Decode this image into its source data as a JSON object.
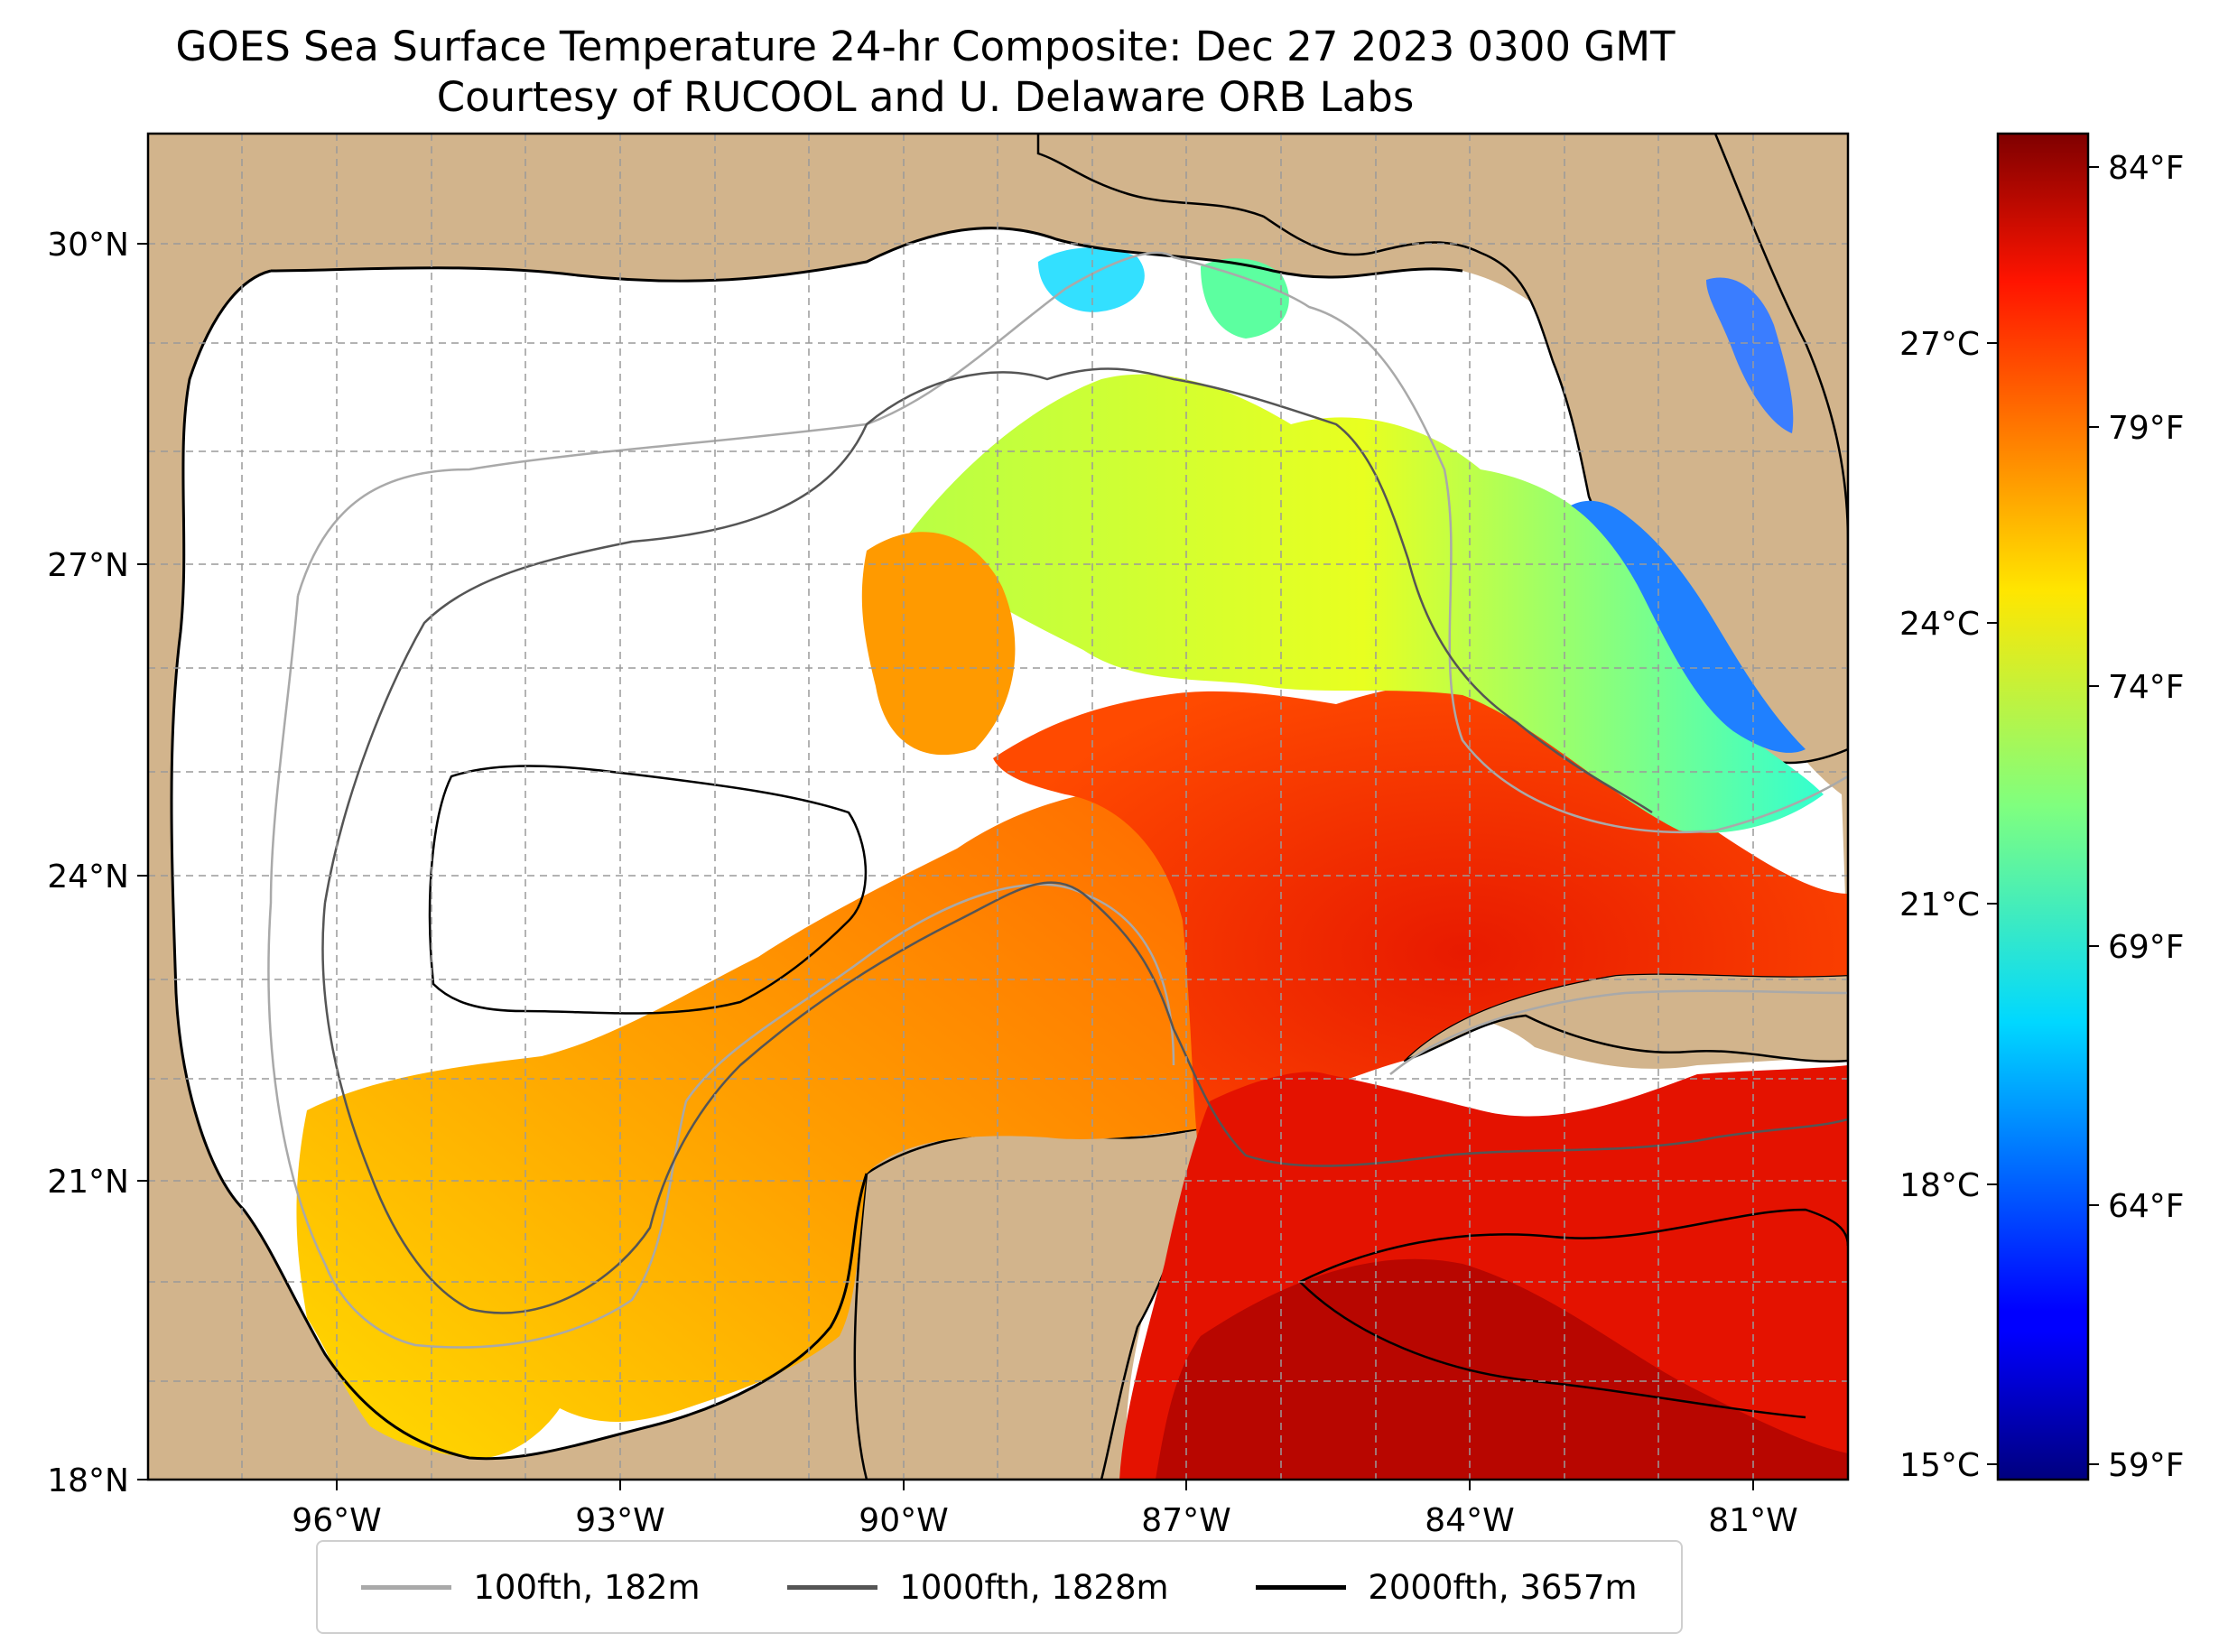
{
  "title": {
    "line1": "GOES Sea Surface Temperature 24-hr Composite: Dec 27 2023 0300 GMT",
    "line2": "Courtesy of RUCOOL and U. Delaware ORB Labs"
  },
  "map": {
    "lat_labels": [
      "30°N",
      "27°N",
      "24°N",
      "21°N",
      "18°N"
    ],
    "lon_labels": [
      "96°W",
      "93°W",
      "90°W",
      "87°W",
      "84°W",
      "81°W"
    ],
    "lat_range": [
      18,
      31
    ],
    "lon_range": [
      -98,
      -80
    ],
    "land_color": "#d2b48c",
    "nodata_color": "#ffffff",
    "grid": true
  },
  "colorbar": {
    "celsius_labels": [
      "27°C",
      "24°C",
      "21°C",
      "18°C",
      "15°C"
    ],
    "fahrenheit_labels": [
      "84°F",
      "79°F",
      "74°F",
      "69°F",
      "64°F",
      "59°F"
    ],
    "colormap": "jet",
    "range_f": [
      58.5,
      85
    ]
  },
  "legend": {
    "items": [
      {
        "label": "100fth, 182m",
        "color": "#a9a9a9"
      },
      {
        "label": "1000fth, 1828m",
        "color": "#555555"
      },
      {
        "label": "2000fth, 3657m",
        "color": "#000000"
      }
    ]
  }
}
